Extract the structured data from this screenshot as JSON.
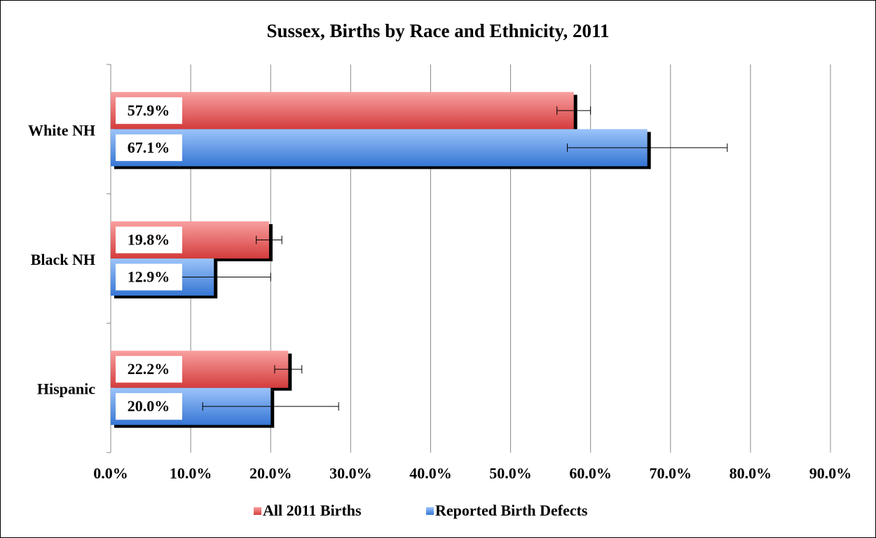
{
  "chart_data": {
    "type": "hbar",
    "title": "Sussex, Births by Race and Ethnicity, 2011",
    "categories": [
      "White NH",
      "Black NH",
      "Hispanic"
    ],
    "series": [
      {
        "name": "All 2011 Births",
        "color": "#e04848",
        "values": [
          57.9,
          19.8,
          22.2
        ],
        "value_labels": [
          "57.9%",
          "19.8%",
          "22.2%"
        ],
        "errors": [
          2.1,
          1.6,
          1.7
        ]
      },
      {
        "name": "Reported Birth Defects",
        "color": "#4a88e0",
        "values": [
          67.1,
          12.9,
          20.0
        ],
        "value_labels": [
          "67.1%",
          "12.9%",
          "20.0%"
        ],
        "errors": [
          10,
          7.1,
          8.5
        ]
      }
    ],
    "xlim": [
      0,
      90
    ],
    "xticks": [
      {
        "value": 0,
        "label": "0.0%"
      },
      {
        "value": 10,
        "label": "10.0%"
      },
      {
        "value": 20,
        "label": "20.0%"
      },
      {
        "value": 30,
        "label": "30.0%"
      },
      {
        "value": 40,
        "label": "40.0%"
      },
      {
        "value": 50,
        "label": "50.0%"
      },
      {
        "value": 60,
        "label": "60.0%"
      },
      {
        "value": 70,
        "label": "70.0%"
      },
      {
        "value": 80,
        "label": "80.0%"
      },
      {
        "value": 90,
        "label": "90.0%"
      }
    ],
    "grid": true,
    "legend": "bottom"
  }
}
